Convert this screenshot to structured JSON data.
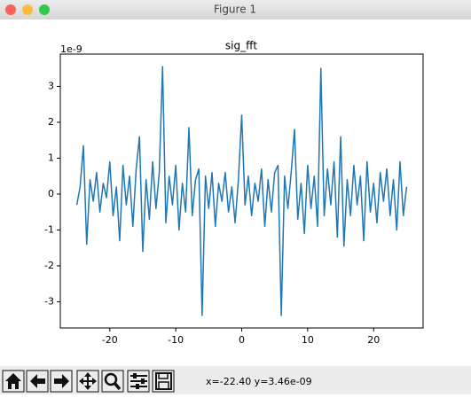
{
  "window": {
    "title": "Figure 1"
  },
  "chart_data": {
    "type": "line",
    "title": "sig_fft",
    "offset_text": "1e-9",
    "color": "#1f77b4",
    "x": [
      -25,
      -24.5,
      -24,
      -23.5,
      -23,
      -22.5,
      -22,
      -21.5,
      -21,
      -20.5,
      -20,
      -19.5,
      -19,
      -18.5,
      -18,
      -17.5,
      -17,
      -16.5,
      -16,
      -15.5,
      -15,
      -14.5,
      -14,
      -13.5,
      -13,
      -12.5,
      -12,
      -11.5,
      -11,
      -10.5,
      -10,
      -9.5,
      -9,
      -8.5,
      -8,
      -7.5,
      -7,
      -6.5,
      -6,
      -5.5,
      -5,
      -4.5,
      -4,
      -3.5,
      -3,
      -2.5,
      -2,
      -1.5,
      -1,
      -0.5,
      0,
      0.5,
      1,
      1.5,
      2,
      2.5,
      3,
      3.5,
      4,
      4.5,
      5,
      5.5,
      6,
      6.5,
      7,
      7.5,
      8,
      8.5,
      9,
      9.5,
      10,
      10.5,
      11,
      11.5,
      12,
      12.5,
      13,
      13.5,
      14,
      14.5,
      15,
      15.5,
      16,
      16.5,
      17,
      17.5,
      18,
      18.5,
      19,
      19.5,
      20,
      20.5,
      21,
      21.5,
      22,
      22.5,
      23,
      23.5,
      24,
      24.5,
      25
    ],
    "values": [
      -0.3,
      0.2,
      1.35,
      -1.4,
      0.4,
      -0.2,
      0.6,
      -0.5,
      0.3,
      -0.1,
      0.9,
      -0.6,
      0.2,
      -1.3,
      0.8,
      -0.3,
      0.5,
      -0.9,
      0.7,
      1.6,
      -1.6,
      0.4,
      -0.7,
      0.9,
      -0.4,
      0.6,
      3.55,
      -0.8,
      0.5,
      -0.3,
      0.8,
      -1.0,
      0.3,
      -0.5,
      1.85,
      -0.6,
      0.4,
      0.7,
      -3.38,
      0.5,
      -0.4,
      0.6,
      -0.9,
      0.3,
      -0.2,
      0.6,
      -0.5,
      0.2,
      -0.8,
      0.4,
      2.2,
      -0.3,
      0.5,
      -0.6,
      0.3,
      -0.2,
      0.7,
      -0.9,
      0.4,
      -0.5,
      0.6,
      0.8,
      -3.38,
      0.5,
      -0.4,
      0.6,
      1.8,
      -0.7,
      0.3,
      -1.1,
      0.8,
      -0.4,
      0.5,
      -0.9,
      3.5,
      -0.6,
      0.7,
      -0.3,
      0.9,
      -1.2,
      1.6,
      -1.45,
      0.4,
      -0.6,
      0.8,
      -0.3,
      0.5,
      -1.3,
      0.9,
      -0.5,
      0.3,
      -0.8,
      0.6,
      -0.2,
      0.7,
      -0.6,
      0.4,
      -1.0,
      0.9,
      -0.6,
      0.2
    ],
    "xlim": [
      -27.5,
      27.5
    ],
    "ylim": [
      -3.73,
      3.9
    ],
    "xticks": [
      -20,
      -10,
      0,
      10,
      20
    ],
    "yticks": [
      -3,
      -2,
      -1,
      0,
      1,
      2,
      3
    ]
  },
  "status": "x=-22.40 y=3.46e-09"
}
